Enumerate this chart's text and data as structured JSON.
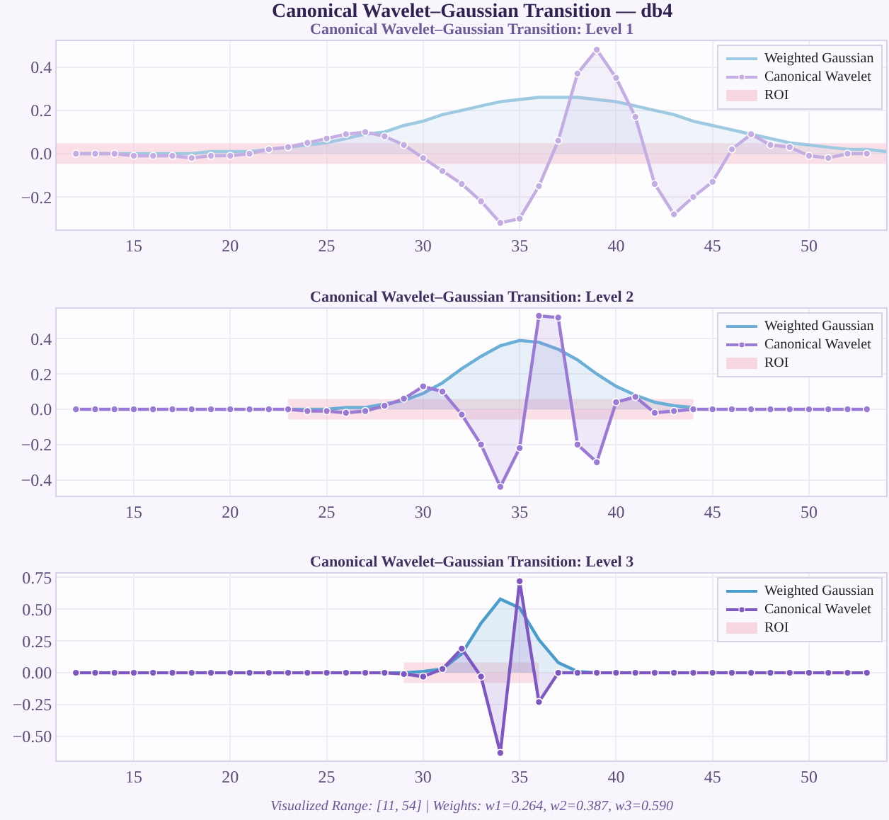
{
  "chart_data": [
    {
      "type": "area",
      "title": "Canonical Wavelet–Gaussian Transition — db4",
      "subtitle": "Canonical Wavelet–Gaussian Transition: Level 1",
      "xlim": [
        11,
        54
      ],
      "xticks": [
        15,
        20,
        25,
        30,
        35,
        40,
        45,
        50
      ],
      "ylim": [
        -0.35,
        0.52
      ],
      "yticks": [
        {
          "value": -0.2,
          "label": "−0.2"
        },
        {
          "value": 0.0,
          "label": "0.0"
        },
        {
          "value": 0.2,
          "label": "0.2"
        },
        {
          "value": 0.4,
          "label": "0.4"
        }
      ],
      "grid": true,
      "legend": "top right",
      "marker": "circle",
      "line_style": "solid",
      "series": [
        {
          "name": "Weighted Gaussian",
          "color": "#9ecae1",
          "marker": "none",
          "x": [
            12,
            13,
            14,
            15,
            16,
            17,
            18,
            19,
            20,
            21,
            22,
            23,
            24,
            25,
            26,
            27,
            28,
            29,
            30,
            31,
            32,
            33,
            34,
            35,
            36,
            37,
            38,
            39,
            40,
            41,
            42,
            43,
            44,
            45,
            46,
            47,
            48,
            49,
            50,
            51,
            52,
            53,
            54
          ],
          "values": [
            0.0,
            0.0,
            0.0,
            0.0,
            0.0,
            0.0,
            0.0,
            0.01,
            0.01,
            0.01,
            0.02,
            0.03,
            0.04,
            0.05,
            0.07,
            0.09,
            0.1,
            0.13,
            0.15,
            0.18,
            0.2,
            0.22,
            0.24,
            0.25,
            0.26,
            0.26,
            0.26,
            0.25,
            0.24,
            0.22,
            0.2,
            0.18,
            0.15,
            0.13,
            0.11,
            0.09,
            0.07,
            0.05,
            0.04,
            0.03,
            0.02,
            0.02,
            0.01
          ]
        },
        {
          "name": "Canonical Wavelet",
          "color": "#c3ade3",
          "x": [
            12,
            13,
            14,
            15,
            16,
            17,
            18,
            19,
            20,
            21,
            22,
            23,
            24,
            25,
            26,
            27,
            28,
            29,
            30,
            31,
            32,
            33,
            34,
            35,
            36,
            37,
            38,
            39,
            40,
            41,
            42,
            43,
            44,
            45,
            46,
            47,
            48,
            49,
            50,
            51,
            52,
            53
          ],
          "values": [
            0.0,
            0.0,
            0.0,
            -0.01,
            -0.01,
            -0.01,
            -0.02,
            -0.01,
            -0.01,
            0.0,
            0.02,
            0.03,
            0.05,
            0.07,
            0.09,
            0.1,
            0.08,
            0.04,
            -0.02,
            -0.08,
            -0.14,
            -0.22,
            -0.32,
            -0.3,
            -0.15,
            0.06,
            0.37,
            0.48,
            0.35,
            0.17,
            -0.14,
            -0.28,
            -0.2,
            -0.13,
            0.02,
            0.09,
            0.04,
            0.03,
            -0.01,
            -0.02,
            0.0,
            0.0
          ]
        }
      ],
      "bands": [
        {
          "axis": "x",
          "from": 11,
          "to": 54,
          "label": "ROI",
          "color": "#f4b6c2"
        }
      ]
    },
    {
      "type": "area",
      "subtitle": "Canonical Wavelet–Gaussian Transition: Level 2",
      "xlim": [
        11,
        54
      ],
      "xticks": [
        15,
        20,
        25,
        30,
        35,
        40,
        45,
        50
      ],
      "ylim": [
        -0.49,
        0.57
      ],
      "yticks": [
        {
          "value": -0.4,
          "label": "−0.4"
        },
        {
          "value": -0.2,
          "label": "−0.2"
        },
        {
          "value": 0.0,
          "label": "0.0"
        },
        {
          "value": 0.2,
          "label": "0.2"
        },
        {
          "value": 0.4,
          "label": "0.4"
        }
      ],
      "grid": true,
      "legend": "top right",
      "marker": "circle",
      "line_style": "solid",
      "series": [
        {
          "name": "Weighted Gaussian",
          "color": "#6baed6",
          "marker": "none",
          "x": [
            23,
            24,
            25,
            26,
            27,
            28,
            29,
            30,
            31,
            32,
            33,
            34,
            35,
            36,
            37,
            38,
            39,
            40,
            41,
            42,
            43,
            44
          ],
          "values": [
            0.0,
            0.0,
            0.0,
            0.01,
            0.01,
            0.03,
            0.05,
            0.09,
            0.15,
            0.23,
            0.3,
            0.36,
            0.39,
            0.38,
            0.34,
            0.28,
            0.2,
            0.13,
            0.08,
            0.04,
            0.02,
            0.01
          ]
        },
        {
          "name": "Canonical Wavelet",
          "color": "#9b79d6",
          "x": [
            12,
            13,
            14,
            15,
            16,
            17,
            18,
            19,
            20,
            21,
            22,
            23,
            24,
            25,
            26,
            27,
            28,
            29,
            30,
            31,
            32,
            33,
            34,
            35,
            36,
            37,
            38,
            39,
            40,
            41,
            42,
            43,
            44,
            45,
            46,
            47,
            48,
            49,
            50,
            51,
            52,
            53
          ],
          "values": [
            0,
            0,
            0,
            0,
            0,
            0,
            0,
            0,
            0,
            0,
            0,
            0.0,
            -0.01,
            -0.01,
            -0.02,
            -0.01,
            0.02,
            0.06,
            0.13,
            0.1,
            -0.03,
            -0.2,
            -0.44,
            -0.22,
            0.53,
            0.52,
            -0.2,
            -0.3,
            0.04,
            0.07,
            -0.02,
            -0.01,
            0.0,
            0,
            0,
            0,
            0,
            0,
            0,
            0,
            0,
            0
          ]
        }
      ],
      "bands": [
        {
          "axis": "x",
          "from": 23,
          "to": 44,
          "label": "ROI",
          "color": "#f4b6c2"
        }
      ]
    },
    {
      "type": "area",
      "subtitle": "Canonical Wavelet–Gaussian Transition: Level 3",
      "xlim": [
        11,
        54
      ],
      "xticks": [
        15,
        20,
        25,
        30,
        35,
        40,
        45,
        50
      ],
      "ylim": [
        -0.69,
        0.78
      ],
      "yticks": [
        {
          "value": -0.5,
          "label": "−0.50"
        },
        {
          "value": -0.25,
          "label": "−0.25"
        },
        {
          "value": 0.0,
          "label": "0.00"
        },
        {
          "value": 0.25,
          "label": "0.25"
        },
        {
          "value": 0.5,
          "label": "0.50"
        },
        {
          "value": 0.75,
          "label": "0.75"
        }
      ],
      "grid": true,
      "legend": "top right",
      "marker": "circle",
      "line_style": "solid",
      "series": [
        {
          "name": "Weighted Gaussian",
          "color": "#4a9ccd",
          "marker": "none",
          "x": [
            28,
            29,
            30,
            31,
            32,
            33,
            34,
            35,
            36,
            37,
            38,
            39
          ],
          "values": [
            0.0,
            0.0,
            0.01,
            0.03,
            0.15,
            0.39,
            0.58,
            0.51,
            0.26,
            0.08,
            0.01,
            0.0
          ]
        },
        {
          "name": "Canonical Wavelet",
          "color": "#7e57c2",
          "x": [
            12,
            13,
            14,
            15,
            16,
            17,
            18,
            19,
            20,
            21,
            22,
            23,
            24,
            25,
            26,
            27,
            28,
            29,
            30,
            31,
            32,
            33,
            34,
            35,
            36,
            37,
            38,
            39,
            40,
            41,
            42,
            43,
            44,
            45,
            46,
            47,
            48,
            49,
            50,
            51,
            52,
            53
          ],
          "values": [
            0,
            0,
            0,
            0,
            0,
            0,
            0,
            0,
            0,
            0,
            0,
            0,
            0,
            0,
            0,
            0,
            0,
            -0.01,
            -0.03,
            0.03,
            0.19,
            -0.03,
            -0.63,
            0.72,
            -0.23,
            0.0,
            0,
            0,
            0,
            0,
            0,
            0,
            0,
            0,
            0,
            0,
            0,
            0,
            0,
            0,
            0,
            0
          ]
        }
      ],
      "bands": [
        {
          "axis": "x",
          "from": 29,
          "to": 36,
          "label": "ROI",
          "color": "#f4b6c2"
        }
      ],
      "annotations": [
        "Visualized Range: [11, 54] | Weights: w1=0.264, w2=0.387, w3=0.590"
      ]
    }
  ]
}
